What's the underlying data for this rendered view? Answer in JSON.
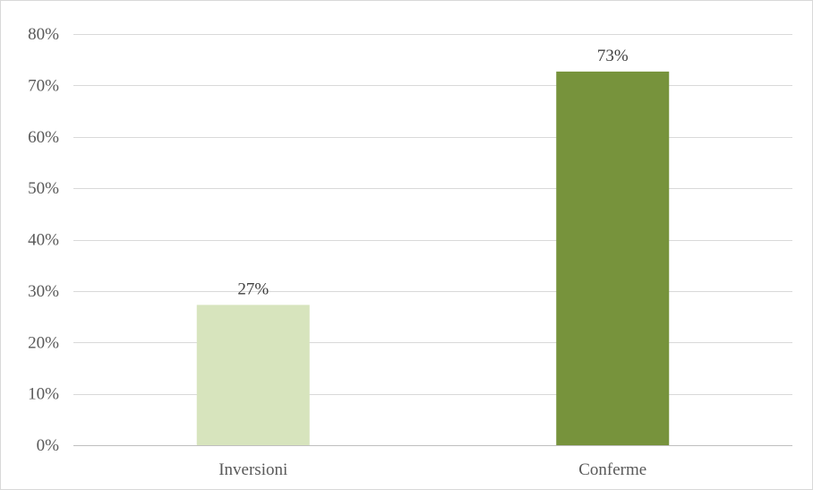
{
  "chart_data": {
    "type": "bar",
    "categories": [
      "Inversioni",
      "Conferme"
    ],
    "values": [
      27.3,
      72.7
    ],
    "data_labels": [
      "27%",
      "73%"
    ],
    "colors": [
      "#d7e4bd",
      "#77933c"
    ],
    "ylim": [
      0,
      80
    ],
    "yticks": [
      0,
      10,
      20,
      30,
      40,
      50,
      60,
      70,
      80
    ],
    "ytick_labels": [
      "0%",
      "10%",
      "20%",
      "30%",
      "40%",
      "50%",
      "60%",
      "70%",
      "80%"
    ],
    "grid": true,
    "gridline_color": "#d9d9d9",
    "title": "",
    "xlabel": "",
    "ylabel": ""
  }
}
